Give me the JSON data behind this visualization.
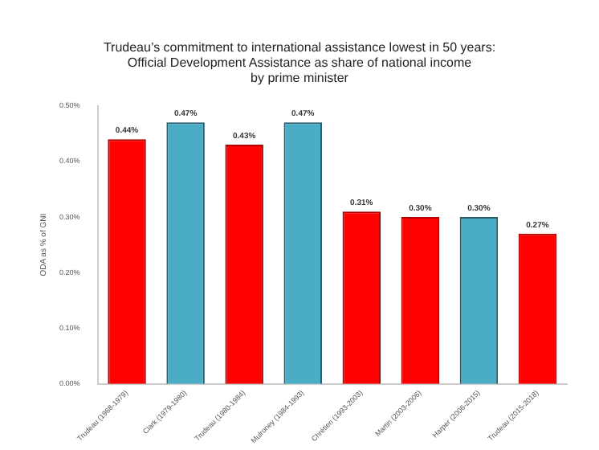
{
  "chart_data": {
    "type": "bar",
    "title": "Trudeau’s commitment to international assistance lowest in 50 years:\nOfficial Development Assistance as share of national income\nby prime minister",
    "ylabel": "ODA as % of GNI",
    "categories": [
      "Trudeau (1968-1979)",
      "Clark (1979-1980)",
      "Trudeau (1980-1984)",
      "Mulroney (1984-1993)",
      "Chrétien (1993-2003)",
      "Martin (2003-2006)",
      "Harper (2006-2015)",
      "Trudeau (2015-2018)"
    ],
    "values": [
      0.44,
      0.47,
      0.43,
      0.47,
      0.31,
      0.3,
      0.3,
      0.27
    ],
    "colors": [
      "#ff0000",
      "#4bacc6",
      "#ff0000",
      "#4bacc6",
      "#ff0000",
      "#ff0000",
      "#4bacc6",
      "#ff0000"
    ],
    "value_labels": [
      "0.44%",
      "0.47%",
      "0.43%",
      "0.47%",
      "0.31%",
      "0.30%",
      "0.30%",
      "0.27%"
    ],
    "ylim": [
      0,
      0.5
    ],
    "yticks": [
      {
        "value": 0,
        "label": "0.00%"
      },
      {
        "value": 0.1,
        "label": "0.10%"
      },
      {
        "value": 0.2,
        "label": "0.20%"
      },
      {
        "value": 0.3,
        "label": "0.30%"
      },
      {
        "value": 0.4,
        "label": "0.40%"
      },
      {
        "value": 0.5,
        "label": "0.50%"
      }
    ],
    "grid": false,
    "legend": false
  }
}
